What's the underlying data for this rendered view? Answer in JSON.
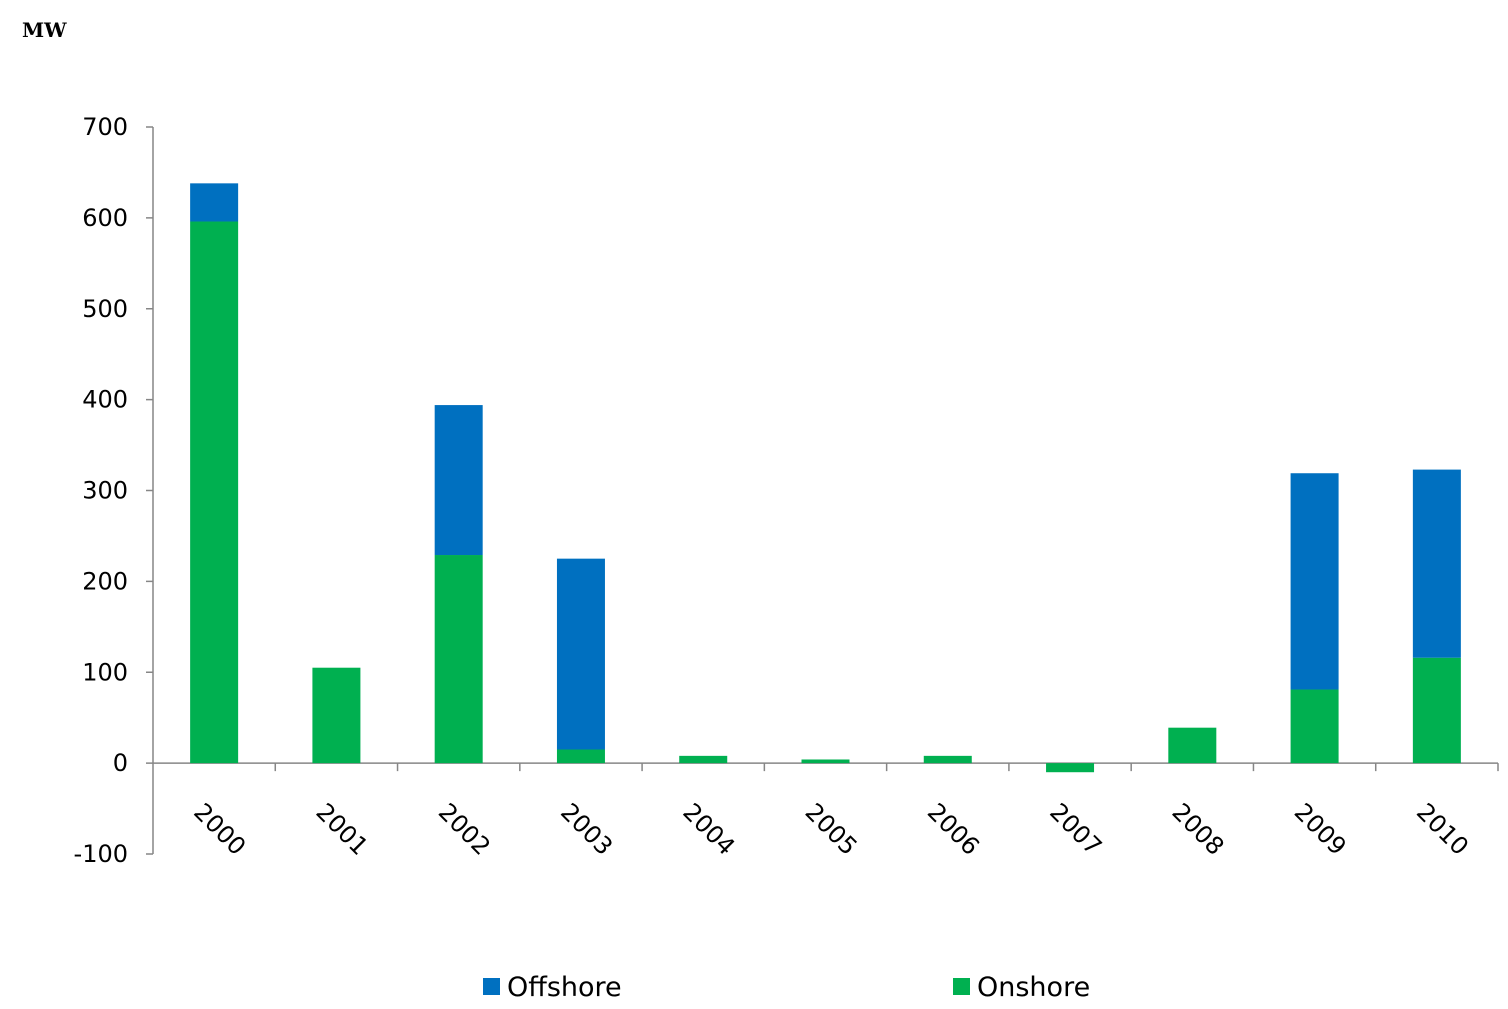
{
  "chart_data": {
    "type": "bar",
    "stacked": true,
    "unit_label": "MW",
    "categories": [
      "2000",
      "2001",
      "2002",
      "2003",
      "2004",
      "2005",
      "2006",
      "2007",
      "2008",
      "2009",
      "2010"
    ],
    "series": [
      {
        "name": "Onshore",
        "color": "#00b050",
        "values": [
          596,
          105,
          229,
          15,
          8,
          4,
          8,
          -10,
          39,
          81,
          116
        ]
      },
      {
        "name": "Offshore",
        "color": "#0070c0",
        "values": [
          42,
          0,
          165,
          210,
          0,
          0,
          0,
          0,
          0,
          238,
          207
        ]
      }
    ],
    "ylim": [
      -100,
      700
    ],
    "yticks": [
      -100,
      0,
      100,
      200,
      300,
      400,
      500,
      600,
      700
    ],
    "grid": false,
    "legend": {
      "position": "bottom",
      "order": [
        "Offshore",
        "Onshore"
      ]
    }
  }
}
